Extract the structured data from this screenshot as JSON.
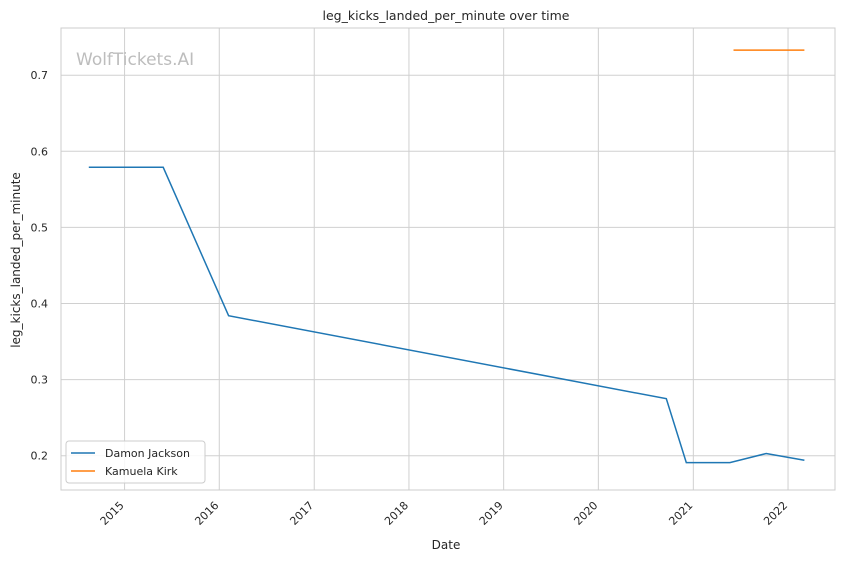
{
  "chart_data": {
    "type": "line",
    "title": "leg_kicks_landed_per_minute over time",
    "xlabel": "Date",
    "ylabel": "leg_kicks_landed_per_minute",
    "watermark": "WolfTickets.AI",
    "xlim": [
      "2014-05-01",
      "2022-07-01"
    ],
    "ylim": [
      0.155,
      0.762
    ],
    "x_ticks": [
      "2015",
      "2016",
      "2017",
      "2018",
      "2019",
      "2020",
      "2021",
      "2022"
    ],
    "y_ticks": [
      "0.2",
      "0.3",
      "0.4",
      "0.5",
      "0.6",
      "0.7"
    ],
    "grid": true,
    "legend_position": "lower-left",
    "series": [
      {
        "name": "Damon Jackson",
        "color": "#1f77b4",
        "x": [
          "2014-08-16",
          "2015-05-30",
          "2016-02-06",
          "2020-09-19",
          "2020-12-05",
          "2021-05-22",
          "2021-10-09",
          "2022-03-05"
        ],
        "y": [
          0.579,
          0.579,
          0.384,
          0.275,
          0.191,
          0.191,
          0.203,
          0.194
        ]
      },
      {
        "name": "Kamuela Kirk",
        "color": "#ff7f0e",
        "x": [
          "2021-06-05",
          "2022-03-05"
        ],
        "y": [
          0.733,
          0.733
        ]
      }
    ]
  }
}
